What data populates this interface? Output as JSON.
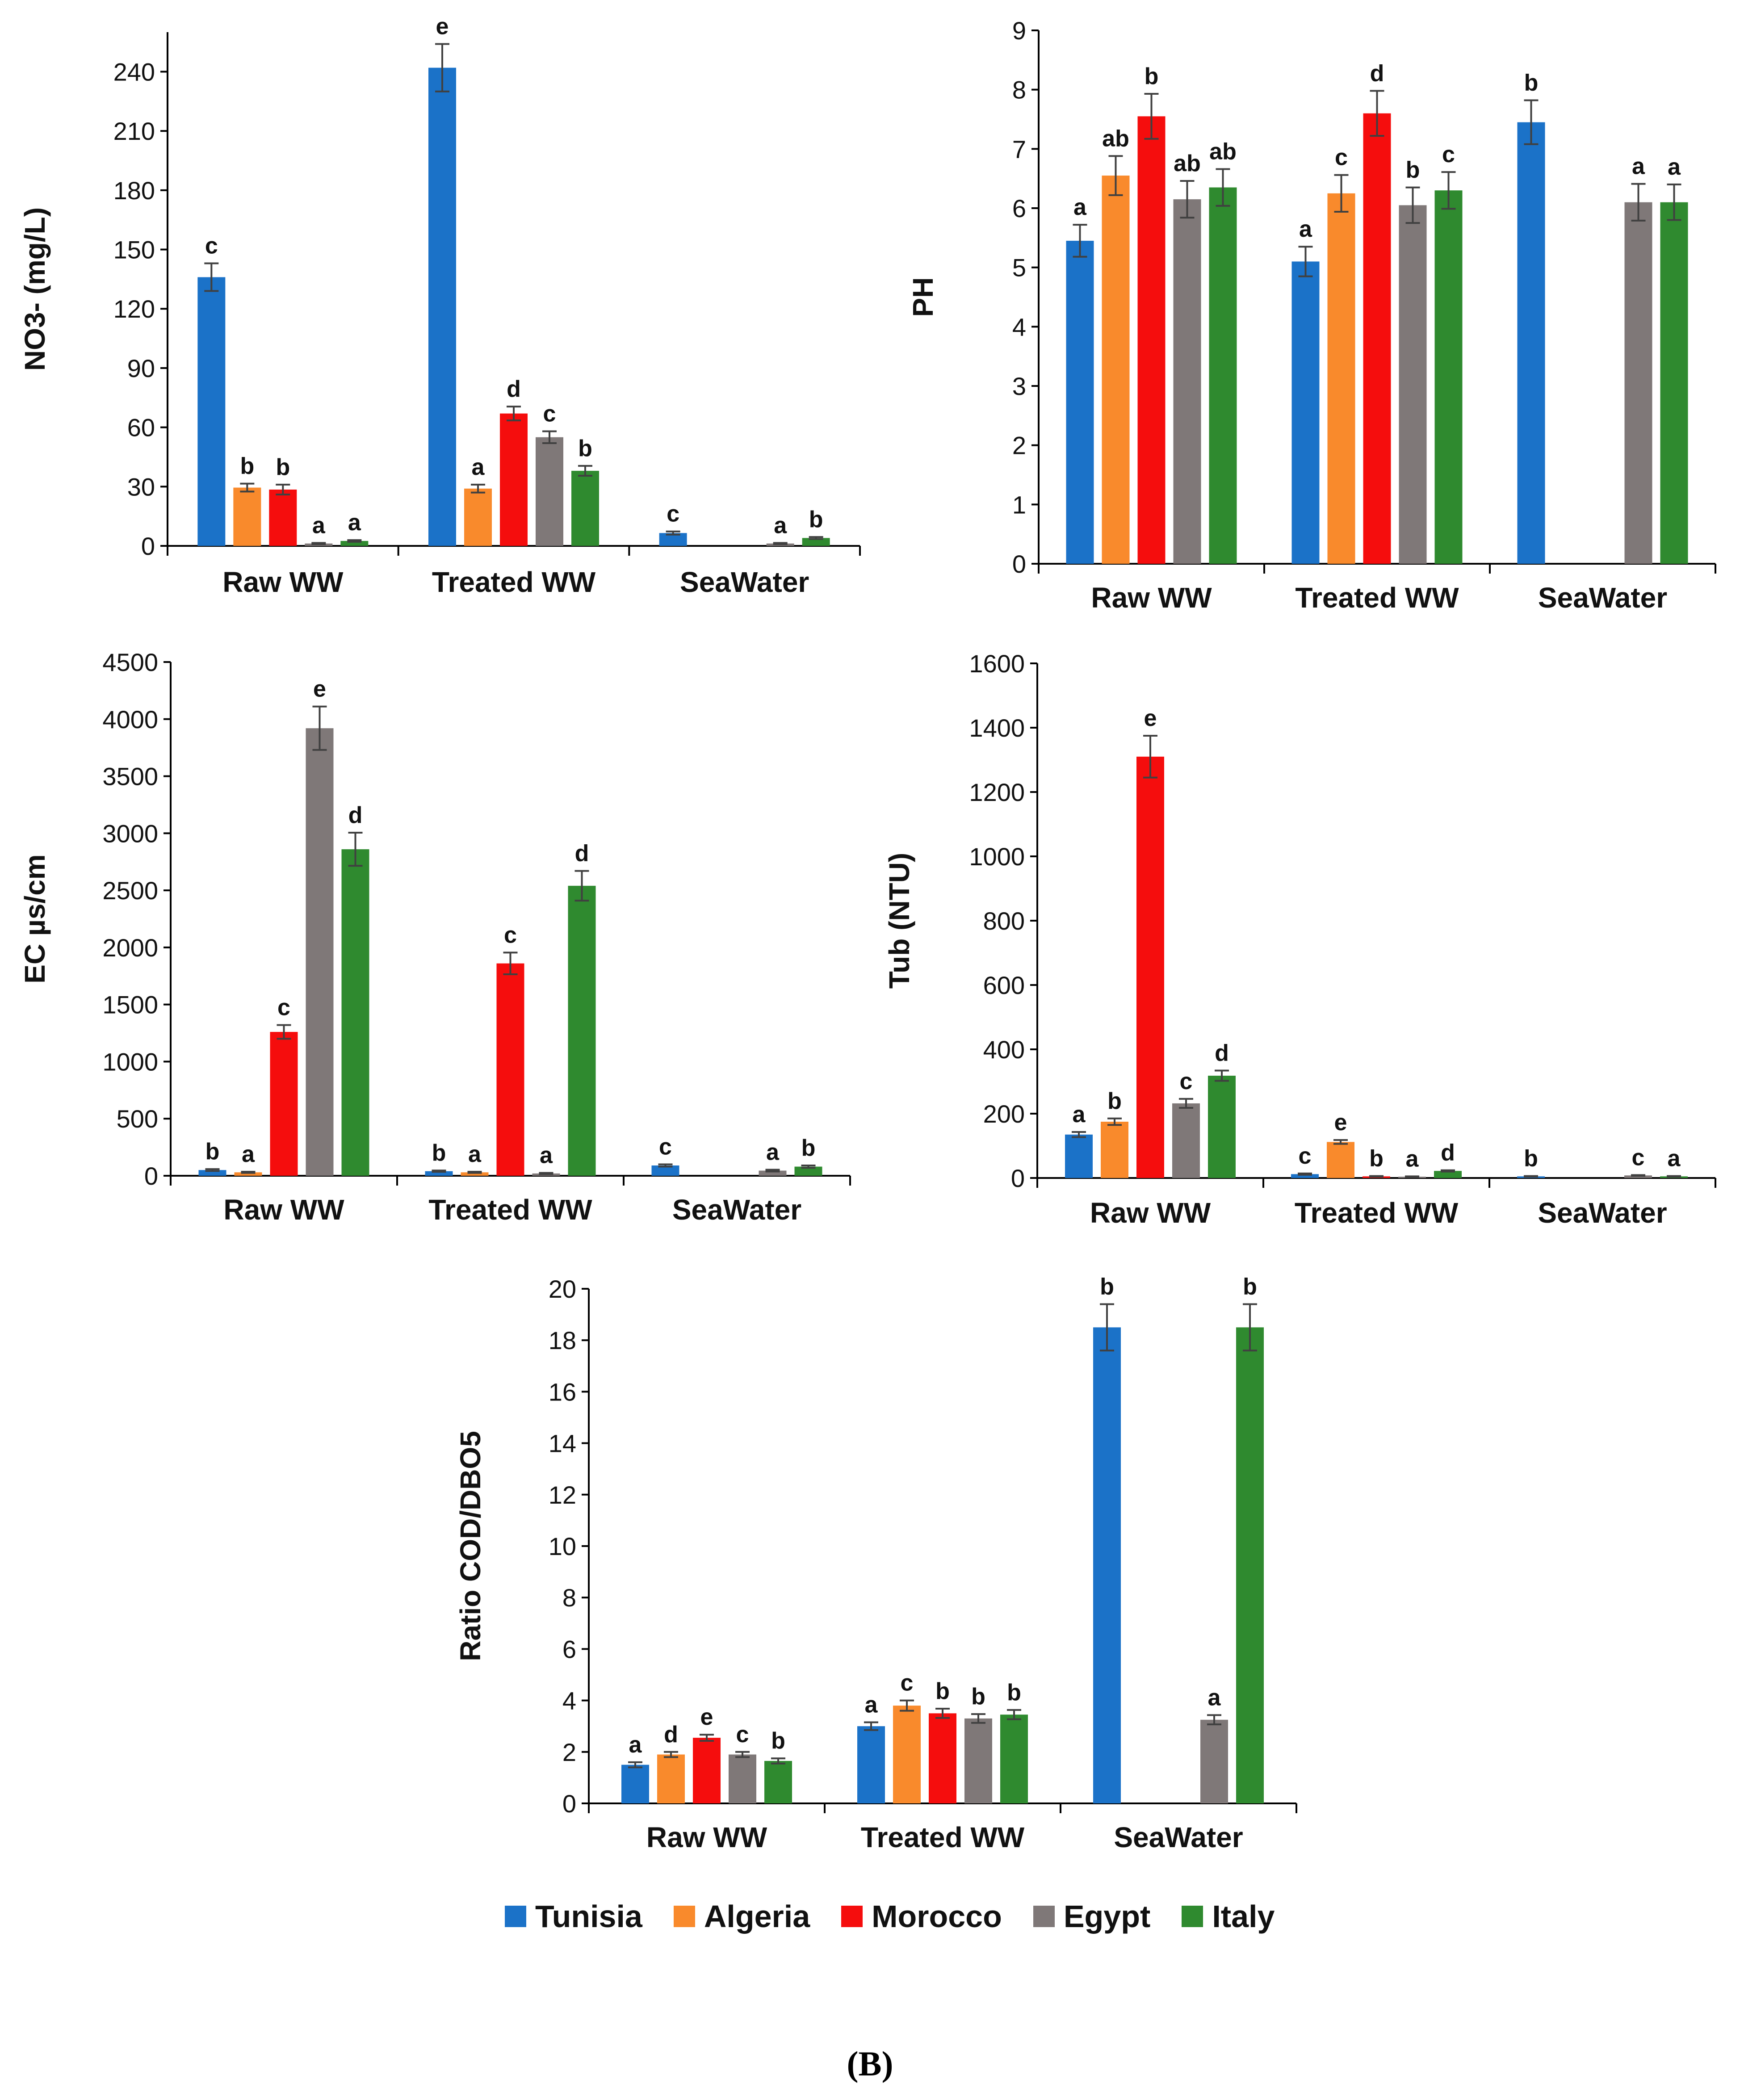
{
  "chart_data": [
    {
      "type": "bar",
      "id": "no3",
      "ylabel": "NO3- (mg/L)",
      "categories": [
        "Raw WW",
        "Treated WW",
        "SeaWater"
      ],
      "ylim": [
        0,
        260
      ],
      "yticks": [
        0,
        30,
        60,
        90,
        120,
        150,
        180,
        210,
        240
      ],
      "series": [
        {
          "name": "Tunisia",
          "values": [
            136,
            242,
            6.5
          ],
          "errors": [
            7,
            12,
            0.8
          ],
          "letters": [
            "c",
            "e",
            "c"
          ]
        },
        {
          "name": "Algeria",
          "values": [
            29.5,
            29,
            null
          ],
          "errors": [
            2,
            2,
            null
          ],
          "letters": [
            "b",
            "a",
            ""
          ]
        },
        {
          "name": "Morocco",
          "values": [
            28.5,
            67,
            null
          ],
          "errors": [
            2.5,
            3.5,
            null
          ],
          "letters": [
            "b",
            "d",
            ""
          ]
        },
        {
          "name": "Egypt",
          "values": [
            1.2,
            55,
            1.2
          ],
          "errors": [
            0.3,
            3,
            0.3
          ],
          "letters": [
            "a",
            "c",
            "a"
          ]
        },
        {
          "name": "Italy",
          "values": [
            2.5,
            38,
            4
          ],
          "errors": [
            0.4,
            2.5,
            0.5
          ],
          "letters": [
            "a",
            "b",
            "b"
          ]
        }
      ]
    },
    {
      "type": "bar",
      "id": "ph",
      "ylabel": "PH",
      "categories": [
        "Raw WW",
        "Treated WW",
        "SeaWater"
      ],
      "ylim": [
        0,
        9
      ],
      "yticks": [
        0,
        1,
        2,
        3,
        4,
        5,
        6,
        7,
        8,
        9
      ],
      "series": [
        {
          "name": "Tunisia",
          "values": [
            5.45,
            5.1,
            7.45
          ],
          "errors": [
            0.27,
            0.25,
            0.37
          ],
          "letters": [
            "a",
            "a",
            "b"
          ]
        },
        {
          "name": "Algeria",
          "values": [
            6.55,
            6.25,
            null
          ],
          "errors": [
            0.33,
            0.31,
            null
          ],
          "letters": [
            "ab",
            "c",
            ""
          ]
        },
        {
          "name": "Morocco",
          "values": [
            7.55,
            7.6,
            null
          ],
          "errors": [
            0.38,
            0.38,
            null
          ],
          "letters": [
            "b",
            "d",
            ""
          ]
        },
        {
          "name": "Egypt",
          "values": [
            6.15,
            6.05,
            6.1
          ],
          "errors": [
            0.31,
            0.3,
            0.31
          ],
          "letters": [
            "ab",
            "b",
            "a"
          ]
        },
        {
          "name": "Italy",
          "values": [
            6.35,
            6.3,
            6.1
          ],
          "errors": [
            0.31,
            0.31,
            0.3
          ],
          "letters": [
            "ab",
            "c",
            "a"
          ]
        }
      ]
    },
    {
      "type": "bar",
      "id": "ec",
      "ylabel": "EC µs/cm",
      "categories": [
        "Raw WW",
        "Treated WW",
        "SeaWater"
      ],
      "ylim": [
        0,
        4500
      ],
      "yticks": [
        0,
        500,
        1000,
        1500,
        2000,
        2500,
        3000,
        3500,
        4000,
        4500
      ],
      "series": [
        {
          "name": "Tunisia",
          "values": [
            50,
            40,
            90
          ],
          "errors": [
            8,
            6,
            10
          ],
          "letters": [
            "b",
            "b",
            "c"
          ]
        },
        {
          "name": "Algeria",
          "values": [
            30,
            30,
            null
          ],
          "errors": [
            5,
            5,
            null
          ],
          "letters": [
            "a",
            "a",
            ""
          ]
        },
        {
          "name": "Morocco",
          "values": [
            1260,
            1860,
            null
          ],
          "errors": [
            60,
            95,
            null
          ],
          "letters": [
            "c",
            "c",
            ""
          ]
        },
        {
          "name": "Egypt",
          "values": [
            3920,
            20,
            45
          ],
          "errors": [
            190,
            5,
            8
          ],
          "letters": [
            "e",
            "a",
            "a"
          ]
        },
        {
          "name": "Italy",
          "values": [
            2860,
            2540,
            80
          ],
          "errors": [
            145,
            130,
            10
          ],
          "letters": [
            "d",
            "d",
            "b"
          ]
        }
      ]
    },
    {
      "type": "bar",
      "id": "tub",
      "ylabel": "Tub (NTU)",
      "categories": [
        "Raw WW",
        "Treated WW",
        "SeaWater"
      ],
      "ylim": [
        0,
        1600
      ],
      "yticks": [
        0,
        200,
        400,
        600,
        800,
        1000,
        1200,
        1400,
        1600
      ],
      "series": [
        {
          "name": "Tunisia",
          "values": [
            135,
            12,
            5
          ],
          "errors": [
            8,
            2,
            1
          ],
          "letters": [
            "a",
            "c",
            "b"
          ]
        },
        {
          "name": "Algeria",
          "values": [
            175,
            112,
            null
          ],
          "errors": [
            10,
            6,
            null
          ],
          "letters": [
            "b",
            "e",
            ""
          ]
        },
        {
          "name": "Morocco",
          "values": [
            1310,
            5,
            null
          ],
          "errors": [
            65,
            1,
            null
          ],
          "letters": [
            "e",
            "b",
            ""
          ]
        },
        {
          "name": "Egypt",
          "values": [
            232,
            4,
            8
          ],
          "errors": [
            14,
            1,
            1
          ],
          "letters": [
            "c",
            "a",
            "c"
          ]
        },
        {
          "name": "Italy",
          "values": [
            318,
            22,
            5
          ],
          "errors": [
            16,
            2,
            1
          ],
          "letters": [
            "d",
            "d",
            "a"
          ]
        }
      ]
    },
    {
      "type": "bar",
      "id": "ratio",
      "ylabel": "Ratio COD/DBO5",
      "categories": [
        "Raw WW",
        "Treated WW",
        "SeaWater"
      ],
      "ylim": [
        0,
        20
      ],
      "yticks": [
        0,
        2,
        4,
        6,
        8,
        10,
        12,
        14,
        16,
        18,
        20
      ],
      "series": [
        {
          "name": "Tunisia",
          "values": [
            1.5,
            3.0,
            18.5
          ],
          "errors": [
            0.1,
            0.15,
            0.9
          ],
          "letters": [
            "a",
            "a",
            "b"
          ]
        },
        {
          "name": "Algeria",
          "values": [
            1.9,
            3.8,
            null
          ],
          "errors": [
            0.1,
            0.2,
            null
          ],
          "letters": [
            "d",
            "c",
            ""
          ]
        },
        {
          "name": "Morocco",
          "values": [
            2.55,
            3.5,
            null
          ],
          "errors": [
            0.12,
            0.18,
            null
          ],
          "letters": [
            "e",
            "b",
            ""
          ]
        },
        {
          "name": "Egypt",
          "values": [
            1.9,
            3.3,
            3.25
          ],
          "errors": [
            0.1,
            0.17,
            0.18
          ],
          "letters": [
            "c",
            "b",
            "a"
          ]
        },
        {
          "name": "Italy",
          "values": [
            1.65,
            3.45,
            18.5
          ],
          "errors": [
            0.1,
            0.18,
            0.9
          ],
          "letters": [
            "b",
            "b",
            "b"
          ]
        }
      ]
    }
  ],
  "legend": [
    {
      "name": "Tunisia",
      "color": "#1b72c8"
    },
    {
      "name": "Algeria",
      "color": "#f98a2c"
    },
    {
      "name": "Morocco",
      "color": "#f50d0d"
    },
    {
      "name": "Egypt",
      "color": "#7f7878"
    },
    {
      "name": "Italy",
      "color": "#2f8a2f"
    }
  ],
  "panel_label": "(B)"
}
